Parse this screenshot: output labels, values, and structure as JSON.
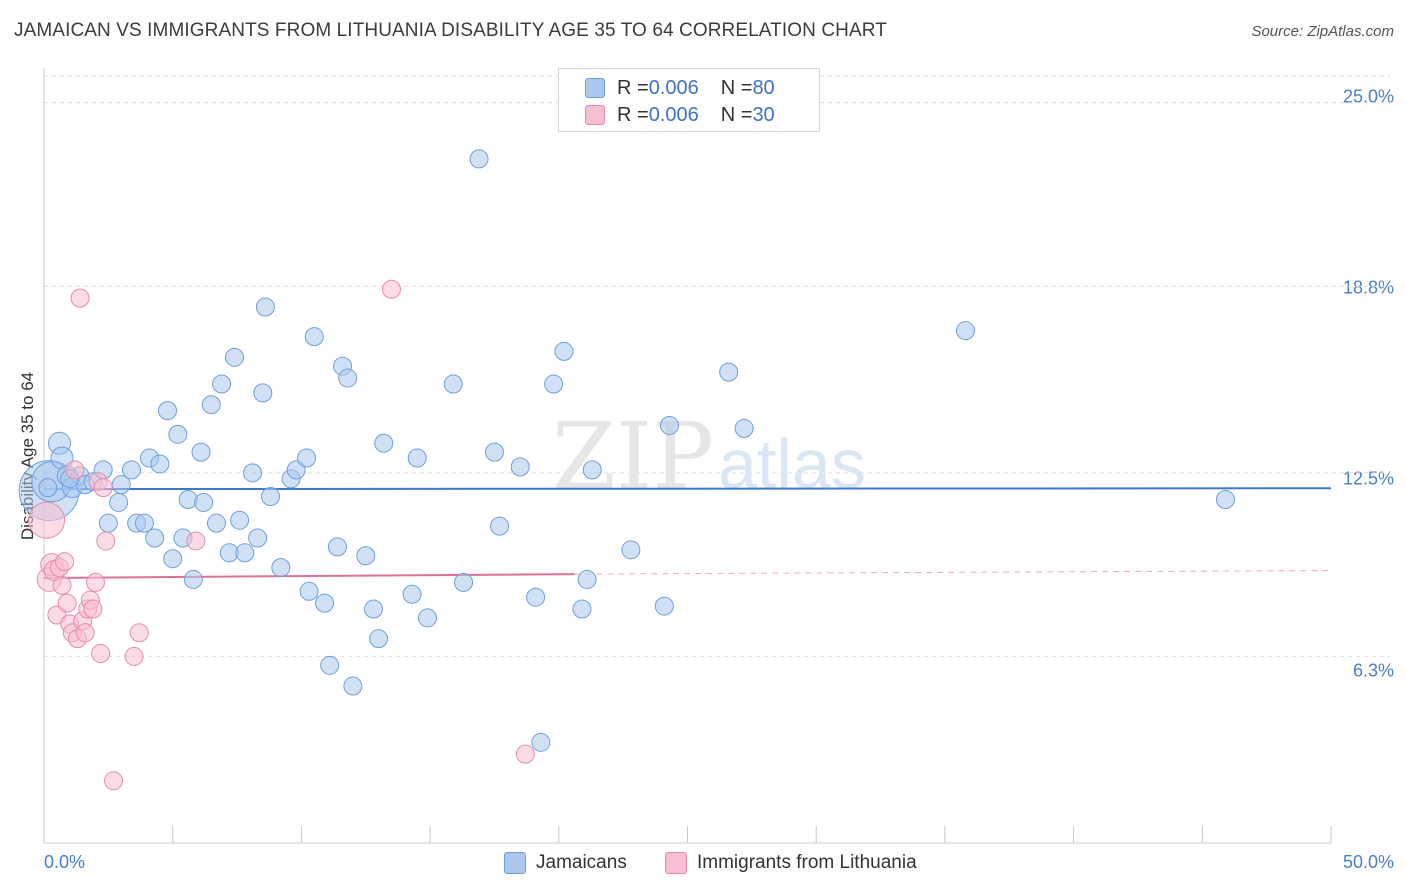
{
  "chart_data": {
    "type": "scatter",
    "title": "JAMAICAN VS IMMIGRANTS FROM LITHUANIA DISABILITY AGE 35 TO 64 CORRELATION CHART",
    "source": "Source: ZipAtlas.com",
    "xlabel": "",
    "ylabel": "Disability Age 35 to 64",
    "xlim": [
      0,
      50
    ],
    "ylim": [
      0,
      25.9
    ],
    "x_tick_labels": [
      "0.0%",
      "50.0%"
    ],
    "y_ticks": [
      {
        "value": 25.0,
        "label": "25.0%"
      },
      {
        "value": 18.8,
        "label": "18.8%"
      },
      {
        "value": 12.5,
        "label": "12.5%"
      },
      {
        "value": 6.3,
        "label": "6.3%"
      }
    ],
    "watermark": {
      "left": "ZIP",
      "right": "atlas"
    },
    "legend": [
      {
        "r_label": "R = ",
        "r_value": "0.006",
        "n_label": "N = ",
        "n_value": "80"
      },
      {
        "r_label": "R = ",
        "r_value": "0.006",
        "n_label": "N = ",
        "n_value": "30"
      }
    ],
    "series": [
      {
        "name": "Jamaicans",
        "color": "#aac8ee",
        "stroke": "#6f9fdb",
        "trend_color": "#3a78d4",
        "trend": {
          "x": [
            0,
            50
          ],
          "y": [
            11.95,
            11.98
          ]
        },
        "points": [
          [
            0.2,
            11.9
          ],
          [
            0.3,
            12.2
          ],
          [
            0.6,
            13.5
          ],
          [
            0.7,
            13.0
          ],
          [
            0.9,
            12.4
          ],
          [
            1.1,
            12.0
          ],
          [
            1.4,
            12.4
          ],
          [
            1.6,
            12.1
          ],
          [
            1.9,
            12.2
          ],
          [
            2.3,
            12.6
          ],
          [
            2.5,
            10.8
          ],
          [
            2.9,
            11.5
          ],
          [
            3.0,
            12.1
          ],
          [
            3.4,
            12.6
          ],
          [
            3.6,
            10.8
          ],
          [
            3.9,
            10.8
          ],
          [
            4.1,
            13.0
          ],
          [
            4.3,
            10.3
          ],
          [
            4.5,
            12.8
          ],
          [
            4.8,
            14.6
          ],
          [
            5.0,
            9.6
          ],
          [
            5.2,
            13.8
          ],
          [
            5.4,
            10.3
          ],
          [
            5.6,
            11.6
          ],
          [
            5.8,
            8.9
          ],
          [
            6.1,
            13.2
          ],
          [
            6.2,
            11.5
          ],
          [
            6.5,
            14.8
          ],
          [
            6.7,
            10.8
          ],
          [
            6.9,
            15.5
          ],
          [
            7.2,
            9.8
          ],
          [
            7.4,
            16.4
          ],
          [
            7.6,
            10.9
          ],
          [
            7.8,
            9.8
          ],
          [
            8.1,
            12.5
          ],
          [
            8.3,
            10.3
          ],
          [
            8.5,
            15.2
          ],
          [
            8.6,
            18.1
          ],
          [
            8.8,
            11.7
          ],
          [
            9.2,
            9.3
          ],
          [
            9.6,
            12.3
          ],
          [
            9.8,
            12.6
          ],
          [
            10.2,
            13.0
          ],
          [
            10.3,
            8.5
          ],
          [
            10.5,
            17.1
          ],
          [
            10.9,
            8.1
          ],
          [
            11.1,
            6.0
          ],
          [
            11.4,
            10.0
          ],
          [
            11.6,
            16.1
          ],
          [
            11.8,
            15.7
          ],
          [
            12.0,
            5.3
          ],
          [
            12.5,
            9.7
          ],
          [
            12.8,
            7.9
          ],
          [
            13.0,
            6.9
          ],
          [
            13.2,
            13.5
          ],
          [
            14.3,
            8.4
          ],
          [
            14.5,
            13.0
          ],
          [
            14.9,
            7.6
          ],
          [
            15.9,
            15.5
          ],
          [
            16.3,
            8.8
          ],
          [
            16.9,
            23.1
          ],
          [
            17.5,
            13.2
          ],
          [
            17.7,
            10.7
          ],
          [
            18.5,
            12.7
          ],
          [
            19.1,
            8.3
          ],
          [
            19.3,
            3.4
          ],
          [
            19.8,
            15.5
          ],
          [
            20.2,
            16.6
          ],
          [
            20.9,
            7.9
          ],
          [
            21.1,
            8.9
          ],
          [
            21.3,
            12.6
          ],
          [
            22.8,
            9.9
          ],
          [
            24.1,
            8.0
          ],
          [
            24.3,
            14.1
          ],
          [
            26.6,
            15.9
          ],
          [
            27.2,
            14.0
          ],
          [
            35.8,
            17.3
          ],
          [
            45.9,
            11.6
          ],
          [
            0.15,
            12.0
          ],
          [
            1.0,
            12.3
          ]
        ],
        "sizes": [
          30,
          20,
          11,
          11,
          10,
          10,
          9,
          9,
          9,
          9,
          9,
          9,
          9,
          9,
          9,
          9,
          9,
          9,
          9,
          9,
          9,
          9,
          9,
          9,
          9,
          9,
          9,
          9,
          9,
          9,
          9,
          9,
          9,
          9,
          9,
          9,
          9,
          9,
          9,
          9,
          9,
          9,
          9,
          9,
          9,
          9,
          9,
          9,
          9,
          9,
          9,
          9,
          9,
          9,
          9,
          9,
          9,
          9,
          9,
          9,
          9,
          9,
          9,
          9,
          9,
          9,
          9,
          9,
          9,
          9,
          9,
          9,
          9,
          9,
          9,
          9,
          9,
          9,
          9,
          9
        ]
      },
      {
        "name": "Immigrants from Lithuania",
        "color": "#f8bfd2",
        "stroke": "#e88bab",
        "trend_color": "#e0709a",
        "trend": {
          "x": [
            0,
            20.6
          ],
          "y": [
            8.95,
            9.08
          ]
        },
        "trend_dashed": {
          "x": [
            20.6,
            50
          ],
          "y": [
            9.08,
            9.2
          ]
        },
        "points": [
          [
            0.1,
            10.9
          ],
          [
            0.2,
            8.9
          ],
          [
            0.3,
            9.4
          ],
          [
            0.4,
            9.2
          ],
          [
            0.5,
            7.7
          ],
          [
            0.6,
            9.3
          ],
          [
            0.7,
            8.7
          ],
          [
            0.8,
            9.5
          ],
          [
            0.9,
            8.1
          ],
          [
            1.0,
            7.4
          ],
          [
            1.1,
            7.1
          ],
          [
            1.2,
            12.6
          ],
          [
            1.3,
            6.9
          ],
          [
            1.4,
            18.4
          ],
          [
            1.5,
            7.5
          ],
          [
            1.6,
            7.1
          ],
          [
            1.7,
            7.9
          ],
          [
            1.8,
            8.2
          ],
          [
            1.9,
            7.9
          ],
          [
            2.0,
            8.8
          ],
          [
            2.1,
            12.2
          ],
          [
            2.2,
            6.4
          ],
          [
            2.3,
            12.0
          ],
          [
            2.4,
            10.2
          ],
          [
            2.7,
            2.1
          ],
          [
            3.7,
            7.1
          ],
          [
            3.5,
            6.3
          ],
          [
            5.9,
            10.2
          ],
          [
            13.5,
            18.7
          ],
          [
            18.7,
            3.0
          ]
        ],
        "sizes": [
          18,
          12,
          11,
          10,
          9,
          9,
          9,
          9,
          9,
          9,
          9,
          9,
          9,
          9,
          9,
          9,
          9,
          9,
          9,
          9,
          9,
          9,
          9,
          9,
          9,
          9,
          9,
          9,
          9,
          9
        ]
      }
    ]
  }
}
